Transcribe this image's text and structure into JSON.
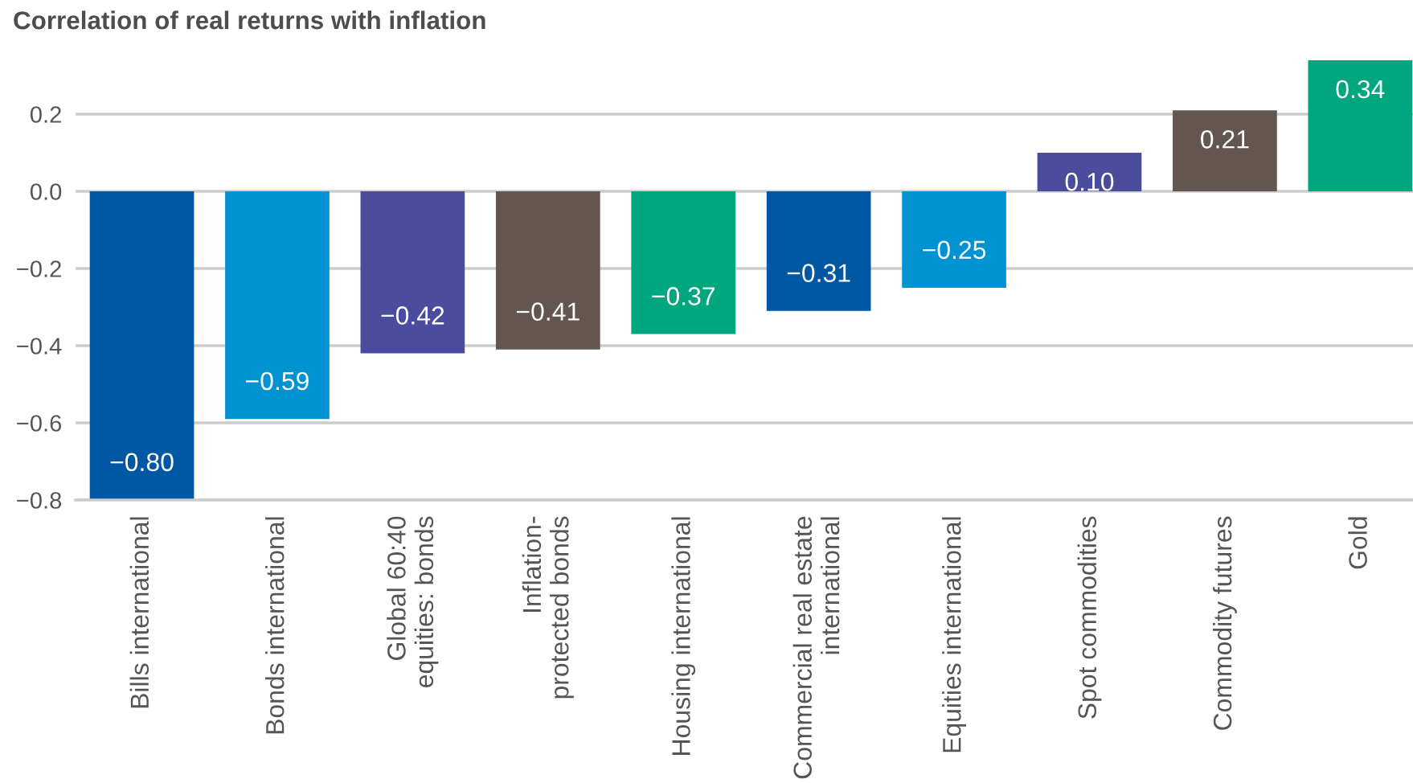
{
  "chart_data": {
    "type": "bar",
    "title": "Correlation of real returns with inflation",
    "categories": [
      "Bills international",
      "Bonds international",
      "Global 60:40\nequities: bonds",
      "Inflation-\nprotected bonds",
      "Housing international",
      "Commercial real estate\ninternational",
      "Equities international",
      "Spot commodities",
      "Commodity futures",
      "Gold"
    ],
    "values": [
      -0.8,
      -0.59,
      -0.42,
      -0.41,
      -0.37,
      -0.31,
      -0.25,
      0.1,
      0.21,
      0.34
    ],
    "colors": [
      "#0057a3",
      "#0092d1",
      "#4a4c9e",
      "#635651",
      "#00a67e",
      "#0057a3",
      "#0092d1",
      "#4a4c9e",
      "#635651",
      "#00a67e"
    ],
    "value_labels": [
      "−0.80",
      "−0.59",
      "−0.42",
      "−0.41",
      "−0.37",
      "−0.31",
      "−0.25",
      "0.10",
      "0.21",
      "0.34"
    ],
    "ylim": [
      -0.8,
      0.34
    ],
    "yticks": [
      {
        "value": -0.8,
        "label": "−0.8"
      },
      {
        "value": -0.6,
        "label": "−0.6"
      },
      {
        "value": -0.4,
        "label": "−0.4"
      },
      {
        "value": -0.2,
        "label": "−0.2"
      },
      {
        "value": 0,
        "label": "0.0"
      },
      0.2
    ],
    "grid": "y"
  }
}
